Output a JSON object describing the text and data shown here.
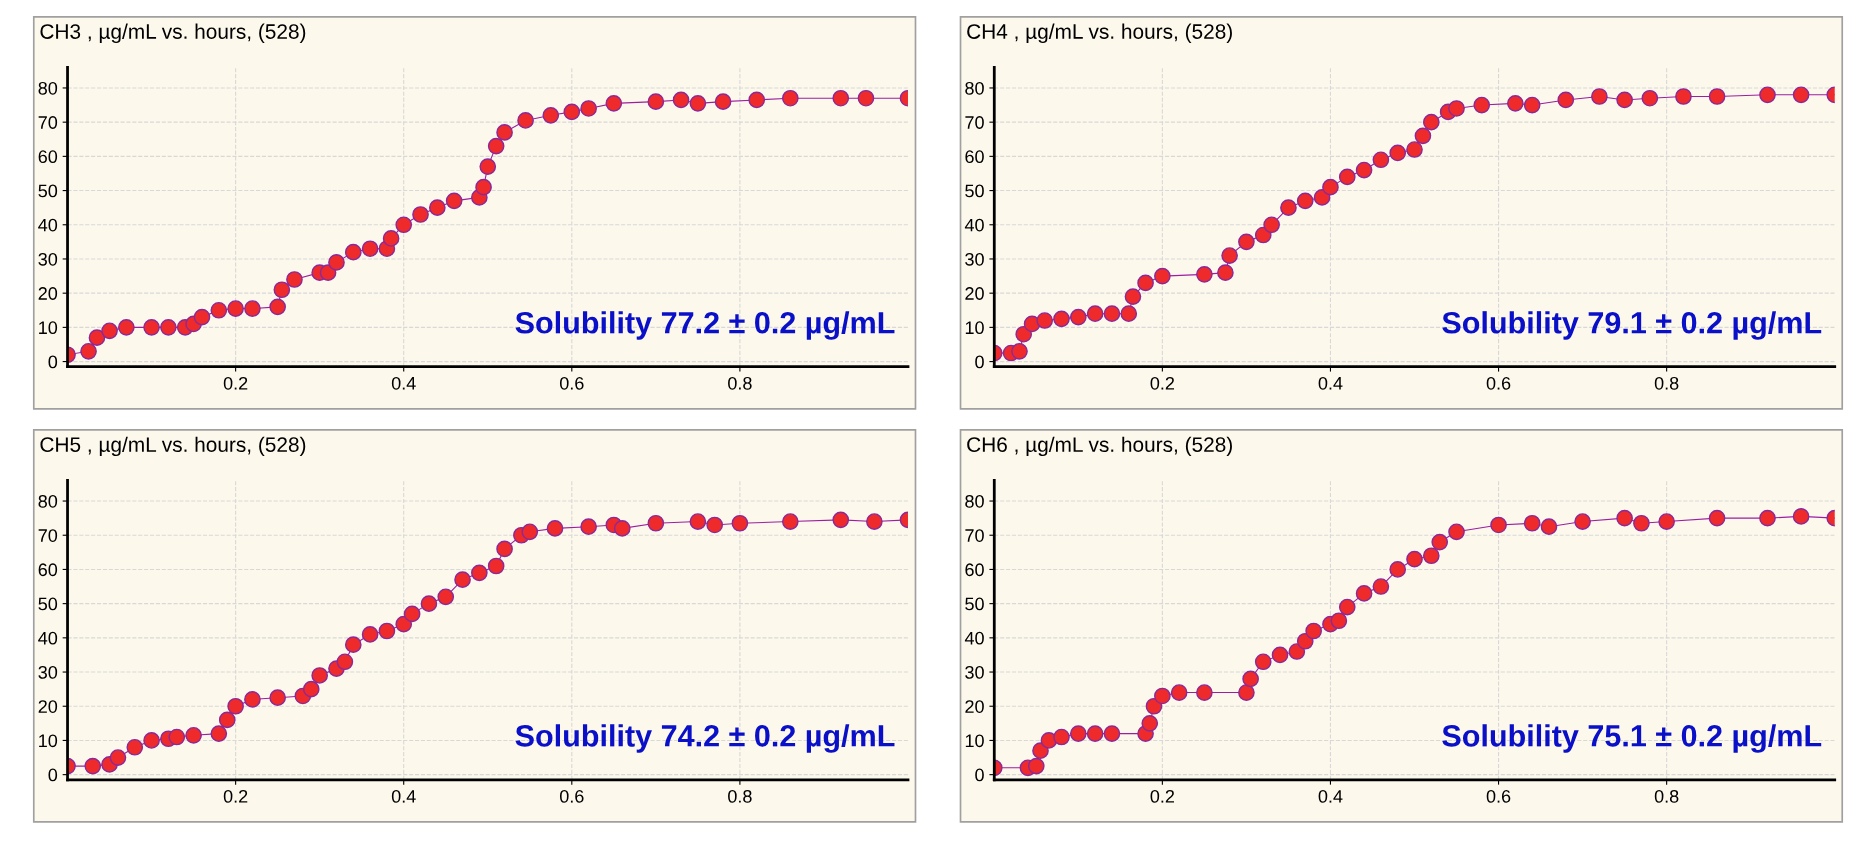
{
  "chart_data": [
    {
      "type": "line",
      "title": "CH3 , µg/mL vs. hours, (528)",
      "marker": "circle",
      "grid": true,
      "xlim": [
        0,
        1
      ],
      "ylim": [
        -1.5,
        86
      ],
      "xticks": [
        0.2,
        0.4,
        0.6,
        0.8
      ],
      "yticks": [
        0,
        10,
        20,
        30,
        40,
        50,
        60,
        70,
        80
      ],
      "annotations": [
        "Solubility 77.2 ± 0.2 µg/mL"
      ],
      "series": [
        {
          "color": "#ee2a2a",
          "x": [
            0,
            0.025,
            0.035,
            0.05,
            0.07,
            0.1,
            0.12,
            0.14,
            0.15,
            0.16,
            0.18,
            0.2,
            0.22,
            0.25,
            0.255,
            0.27,
            0.3,
            0.31,
            0.32,
            0.34,
            0.36,
            0.38,
            0.385,
            0.4,
            0.42,
            0.44,
            0.46,
            0.49,
            0.495,
            0.5,
            0.51,
            0.52,
            0.545,
            0.575,
            0.6,
            0.62,
            0.65,
            0.7,
            0.73,
            0.75,
            0.78,
            0.82,
            0.86,
            0.92,
            0.95,
            1.0
          ],
          "values": [
            2,
            3,
            7,
            9,
            10,
            10,
            10,
            10,
            11,
            13,
            15,
            15.5,
            15.5,
            16,
            21,
            24,
            26,
            26,
            29,
            32,
            33,
            33,
            36,
            40,
            43,
            45,
            47,
            48,
            51,
            57,
            63,
            67,
            70.5,
            72,
            73,
            74,
            75.5,
            76,
            76.5,
            75.5,
            76,
            76.5,
            77,
            77,
            77,
            77
          ]
        }
      ]
    },
    {
      "type": "line",
      "title": "CH4 , µg/mL vs. hours, (528)",
      "marker": "circle",
      "grid": true,
      "xlim": [
        0,
        1
      ],
      "ylim": [
        -1.5,
        86
      ],
      "xticks": [
        0.2,
        0.4,
        0.6,
        0.8
      ],
      "yticks": [
        0,
        10,
        20,
        30,
        40,
        50,
        60,
        70,
        80
      ],
      "annotations": [
        "Solubility 79.1 ± 0.2 µg/mL"
      ],
      "series": [
        {
          "color": "#ee2a2a",
          "x": [
            0,
            0.02,
            0.03,
            0.035,
            0.045,
            0.06,
            0.08,
            0.1,
            0.12,
            0.14,
            0.16,
            0.165,
            0.18,
            0.2,
            0.25,
            0.275,
            0.28,
            0.3,
            0.32,
            0.33,
            0.35,
            0.37,
            0.39,
            0.4,
            0.42,
            0.44,
            0.46,
            0.48,
            0.5,
            0.51,
            0.52,
            0.54,
            0.55,
            0.58,
            0.62,
            0.64,
            0.68,
            0.72,
            0.75,
            0.78,
            0.82,
            0.86,
            0.92,
            0.96,
            1.0
          ],
          "values": [
            2.5,
            2.5,
            3,
            8,
            11,
            12,
            12.5,
            13,
            14,
            14,
            14,
            19,
            23,
            25,
            25.5,
            26,
            31,
            35,
            37,
            40,
            45,
            47,
            48,
            51,
            54,
            56,
            59,
            61,
            62,
            66,
            70,
            73,
            74,
            75,
            75.5,
            75,
            76.5,
            77.5,
            76.5,
            77,
            77.5,
            77.5,
            78,
            78,
            78
          ]
        }
      ]
    },
    {
      "type": "line",
      "title": "CH5 , µg/mL vs. hours, (528)",
      "marker": "circle",
      "grid": true,
      "xlim": [
        0,
        1
      ],
      "ylim": [
        -1.5,
        86
      ],
      "xticks": [
        0.2,
        0.4,
        0.6,
        0.8
      ],
      "yticks": [
        0,
        10,
        20,
        30,
        40,
        50,
        60,
        70,
        80
      ],
      "annotations": [
        "Solubility 74.2 ± 0.2 µg/mL"
      ],
      "series": [
        {
          "color": "#ee2a2a",
          "x": [
            0,
            0.03,
            0.05,
            0.06,
            0.08,
            0.1,
            0.12,
            0.13,
            0.15,
            0.18,
            0.19,
            0.2,
            0.22,
            0.25,
            0.28,
            0.29,
            0.3,
            0.32,
            0.33,
            0.34,
            0.36,
            0.38,
            0.4,
            0.41,
            0.43,
            0.45,
            0.47,
            0.49,
            0.51,
            0.52,
            0.54,
            0.55,
            0.58,
            0.62,
            0.65,
            0.66,
            0.7,
            0.75,
            0.77,
            0.8,
            0.86,
            0.92,
            0.96,
            1.0
          ],
          "values": [
            2.5,
            2.5,
            3,
            5,
            8,
            10,
            10.5,
            11,
            11.5,
            12,
            16,
            20,
            22,
            22.5,
            23,
            25,
            29,
            31,
            33,
            38,
            41,
            42,
            44,
            47,
            50,
            52,
            57,
            59,
            61,
            66,
            70,
            71,
            72,
            72.5,
            73,
            72,
            73.5,
            74,
            73,
            73.5,
            74,
            74.5,
            74,
            74.5
          ]
        }
      ]
    },
    {
      "type": "line",
      "title": "CH6 , µg/mL vs. hours, (528)",
      "marker": "circle",
      "grid": true,
      "xlim": [
        0,
        1
      ],
      "ylim": [
        -1.5,
        86
      ],
      "xticks": [
        0.2,
        0.4,
        0.6,
        0.8
      ],
      "yticks": [
        0,
        10,
        20,
        30,
        40,
        50,
        60,
        70,
        80
      ],
      "annotations": [
        "Solubility 75.1 ± 0.2 µg/mL"
      ],
      "series": [
        {
          "color": "#ee2a2a",
          "x": [
            0,
            0.04,
            0.05,
            0.055,
            0.065,
            0.08,
            0.1,
            0.12,
            0.14,
            0.18,
            0.185,
            0.19,
            0.2,
            0.22,
            0.25,
            0.3,
            0.305,
            0.32,
            0.34,
            0.36,
            0.37,
            0.38,
            0.4,
            0.41,
            0.42,
            0.44,
            0.46,
            0.48,
            0.5,
            0.52,
            0.53,
            0.55,
            0.6,
            0.64,
            0.66,
            0.7,
            0.75,
            0.77,
            0.8,
            0.86,
            0.92,
            0.96,
            1.0
          ],
          "values": [
            2,
            2,
            2.5,
            7,
            10,
            11,
            12,
            12,
            12,
            12,
            15,
            20,
            23,
            24,
            24,
            24,
            28,
            33,
            35,
            36,
            39,
            42,
            44,
            45,
            49,
            53,
            55,
            60,
            63,
            64,
            68,
            71,
            73,
            73.5,
            72.5,
            74,
            75,
            73.5,
            74,
            75,
            75,
            75.5,
            75
          ]
        }
      ]
    }
  ]
}
